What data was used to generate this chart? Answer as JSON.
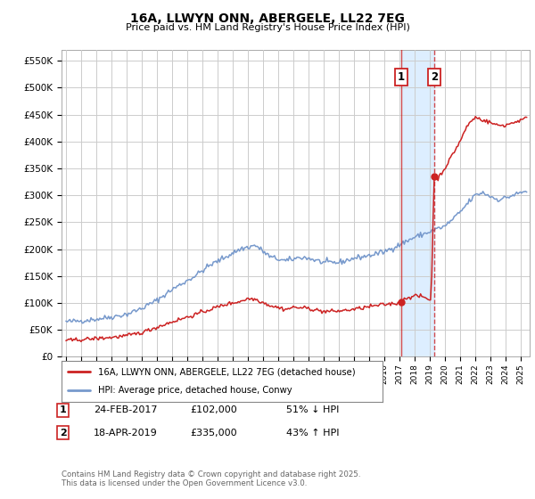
{
  "title": "16A, LLWYN ONN, ABERGELE, LL22 7EG",
  "subtitle": "Price paid vs. HM Land Registry's House Price Index (HPI)",
  "background_color": "#ffffff",
  "plot_bg_color": "#ffffff",
  "grid_color": "#cccccc",
  "hpi_line_color": "#7799cc",
  "price_line_color": "#cc2222",
  "span_color": "#ddeeff",
  "transaction1": {
    "date": "24-FEB-2017",
    "price": 102000,
    "pct": "51%",
    "dir": "↓",
    "label": "1",
    "year": 2017.12
  },
  "transaction2": {
    "date": "18-APR-2019",
    "price": 335000,
    "pct": "43%",
    "dir": "↑",
    "label": "2",
    "year": 2019.29
  },
  "ylim": [
    0,
    570000
  ],
  "yticks": [
    0,
    50000,
    100000,
    150000,
    200000,
    250000,
    300000,
    350000,
    400000,
    450000,
    500000,
    550000
  ],
  "legend_label1": "16A, LLWYN ONN, ABERGELE, LL22 7EG (detached house)",
  "legend_label2": "HPI: Average price, detached house, Conwy",
  "footnote": "Contains HM Land Registry data © Crown copyright and database right 2025.\nThis data is licensed under the Open Government Licence v3.0.",
  "xlim_start": 1994.7,
  "xlim_end": 2025.6
}
